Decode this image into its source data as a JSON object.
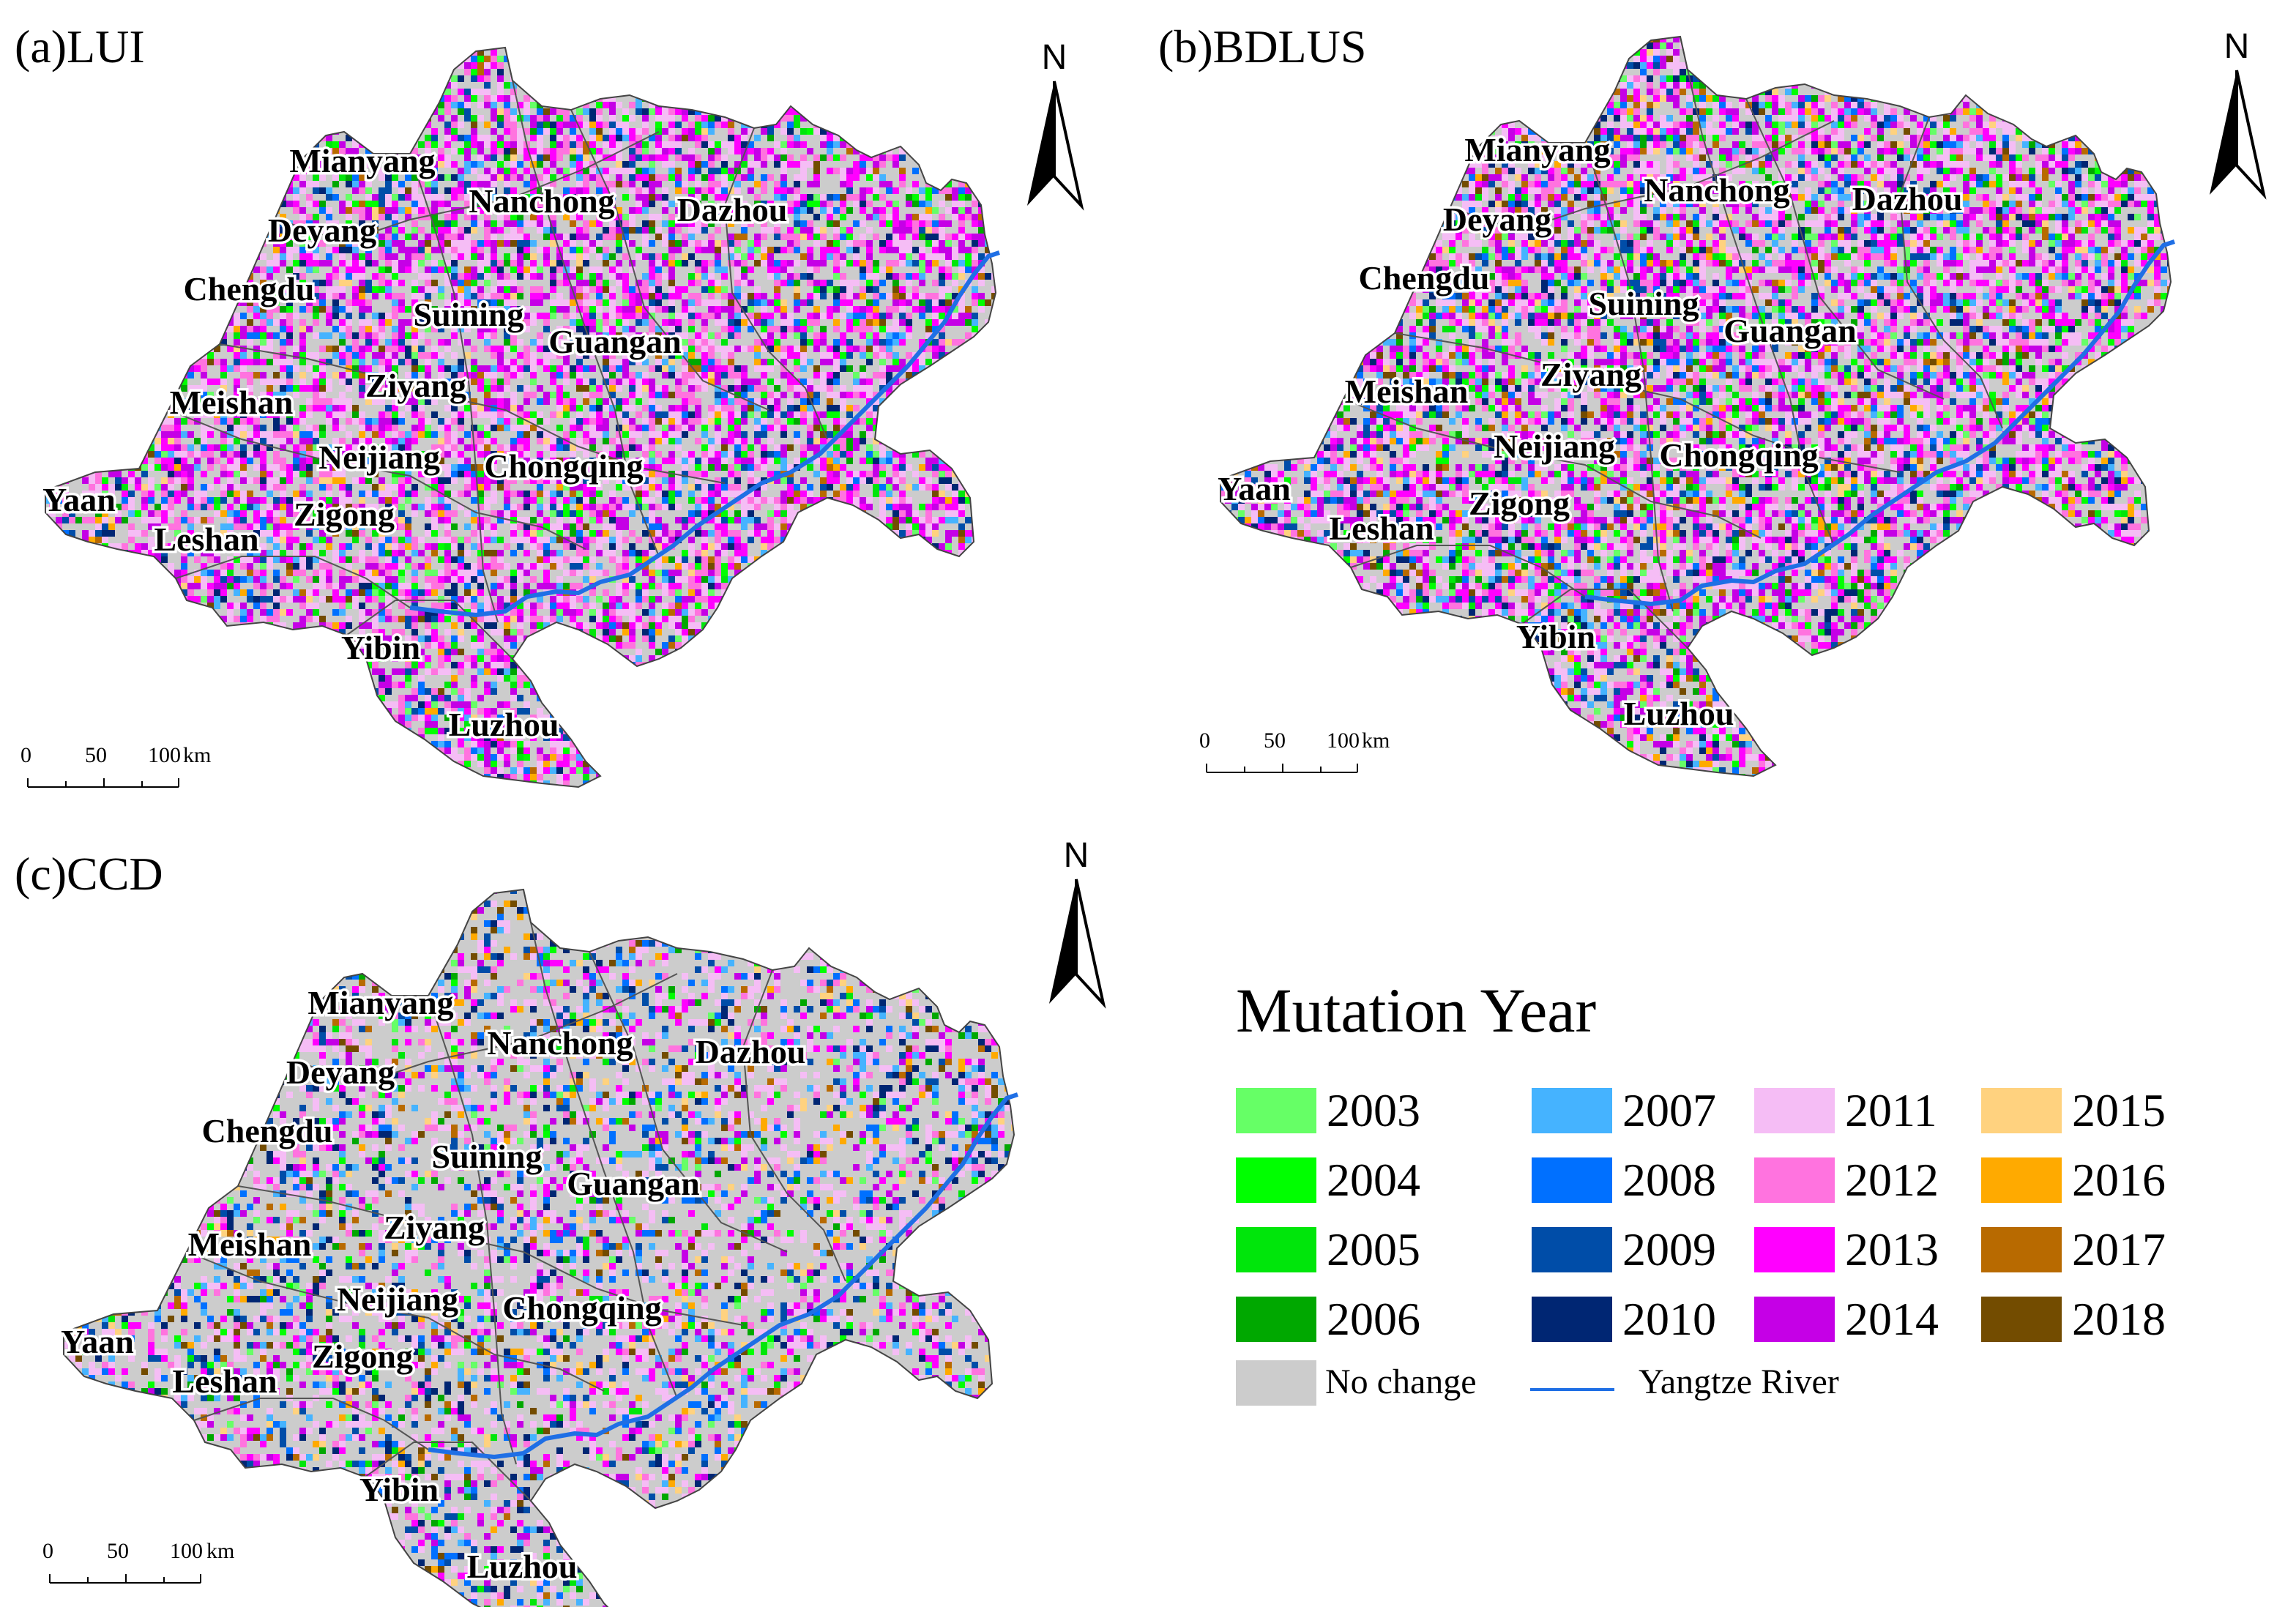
{
  "panels": [
    {
      "id": "a",
      "title": "(a)LUI",
      "cities": [
        "Mianyang",
        "Nanchong",
        "Dazhou",
        "Deyang",
        "Chengdu",
        "Suining",
        "Guangan",
        "Ziyang",
        "Meishan",
        "Neijiang",
        "Chongqing",
        "Yaan",
        "Zigong",
        "Leshan",
        "Yibin",
        "Luzhou"
      ]
    },
    {
      "id": "b",
      "title": "(b)BDLUS",
      "cities": [
        "Mianyang",
        "Nanchong",
        "Dazhou",
        "Deyang",
        "Chengdu",
        "Suining",
        "Guangan",
        "Ziyang",
        "Meishan",
        "Neijiang",
        "Chongqing",
        "Yaan",
        "Zigong",
        "Leshan",
        "Yibin",
        "Luzhou"
      ]
    },
    {
      "id": "c",
      "title": "(c)CCD",
      "cities": [
        "Mianyang",
        "Nanchong",
        "Dazhou",
        "Deyang",
        "Chengdu",
        "Suining",
        "Guangan",
        "Ziyang",
        "Meishan",
        "Neijiang",
        "Chongqing",
        "Yaan",
        "Zigong",
        "Leshan",
        "Yibin",
        "Luzhou"
      ]
    }
  ],
  "north_arrow": {
    "letter": "N"
  },
  "scale_bar": {
    "ticks": [
      "0",
      "50",
      "100"
    ],
    "unit": "km"
  },
  "legend": {
    "title": "Mutation Year",
    "years": [
      {
        "label": "2003",
        "color": "#66ff66"
      },
      {
        "label": "2004",
        "color": "#00ff00"
      },
      {
        "label": "2005",
        "color": "#00e60b"
      },
      {
        "label": "2006",
        "color": "#00a800"
      },
      {
        "label": "2007",
        "color": "#45b3ff"
      },
      {
        "label": "2008",
        "color": "#0070ff"
      },
      {
        "label": "2009",
        "color": "#004da8"
      },
      {
        "label": "2010",
        "color": "#002673"
      },
      {
        "label": "2011",
        "color": "#f5bdf5"
      },
      {
        "label": "2012",
        "color": "#ff73df"
      },
      {
        "label": "2013",
        "color": "#ff00ff"
      },
      {
        "label": "2014",
        "color": "#c500e6"
      },
      {
        "label": "2015",
        "color": "#ffd27f"
      },
      {
        "label": "2016",
        "color": "#ffaa00"
      },
      {
        "label": "2017",
        "color": "#b86a00"
      },
      {
        "label": "2018",
        "color": "#734c00"
      }
    ],
    "no_change": {
      "label": "No change",
      "color": "#cccccc"
    },
    "river": {
      "label": "Yangtze River",
      "color": "#1f6fe5"
    }
  }
}
